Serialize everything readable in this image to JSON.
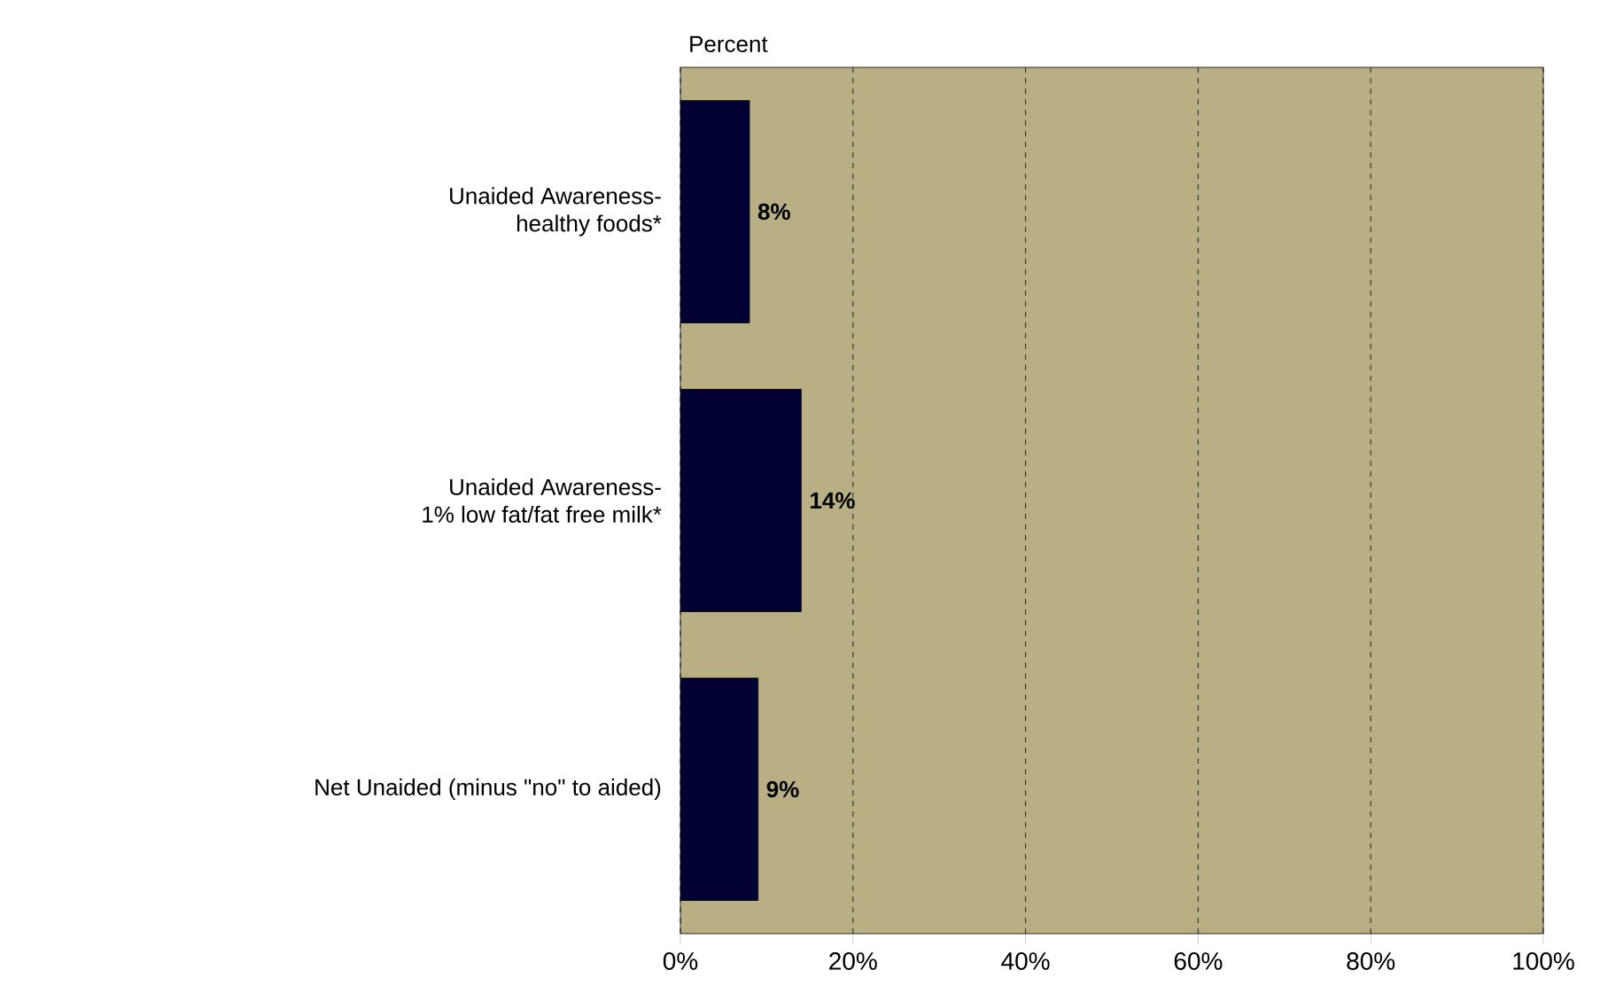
{
  "chart_data": {
    "type": "bar",
    "orientation": "horizontal",
    "xlabel": "Percent",
    "categories": [
      "Unaided Awareness-\nhealthy foods*",
      "Unaided Awareness-\n1% low fat/fat free milk*",
      "Net Unaided (minus \"no\" to aided)"
    ],
    "values": [
      8,
      14,
      9
    ],
    "color": "#000033",
    "value_labels": [
      "8%",
      "14%",
      "9%"
    ],
    "xlim": [
      0,
      100
    ],
    "xticks": [
      {
        "value": 0,
        "label": "0%"
      },
      {
        "value": 20,
        "label": "20%"
      },
      {
        "value": 40,
        "label": "40%"
      },
      {
        "value": 60,
        "label": "60%"
      },
      {
        "value": 80,
        "label": "80%"
      },
      {
        "value": 100,
        "label": "100%"
      }
    ],
    "grid": "x"
  }
}
